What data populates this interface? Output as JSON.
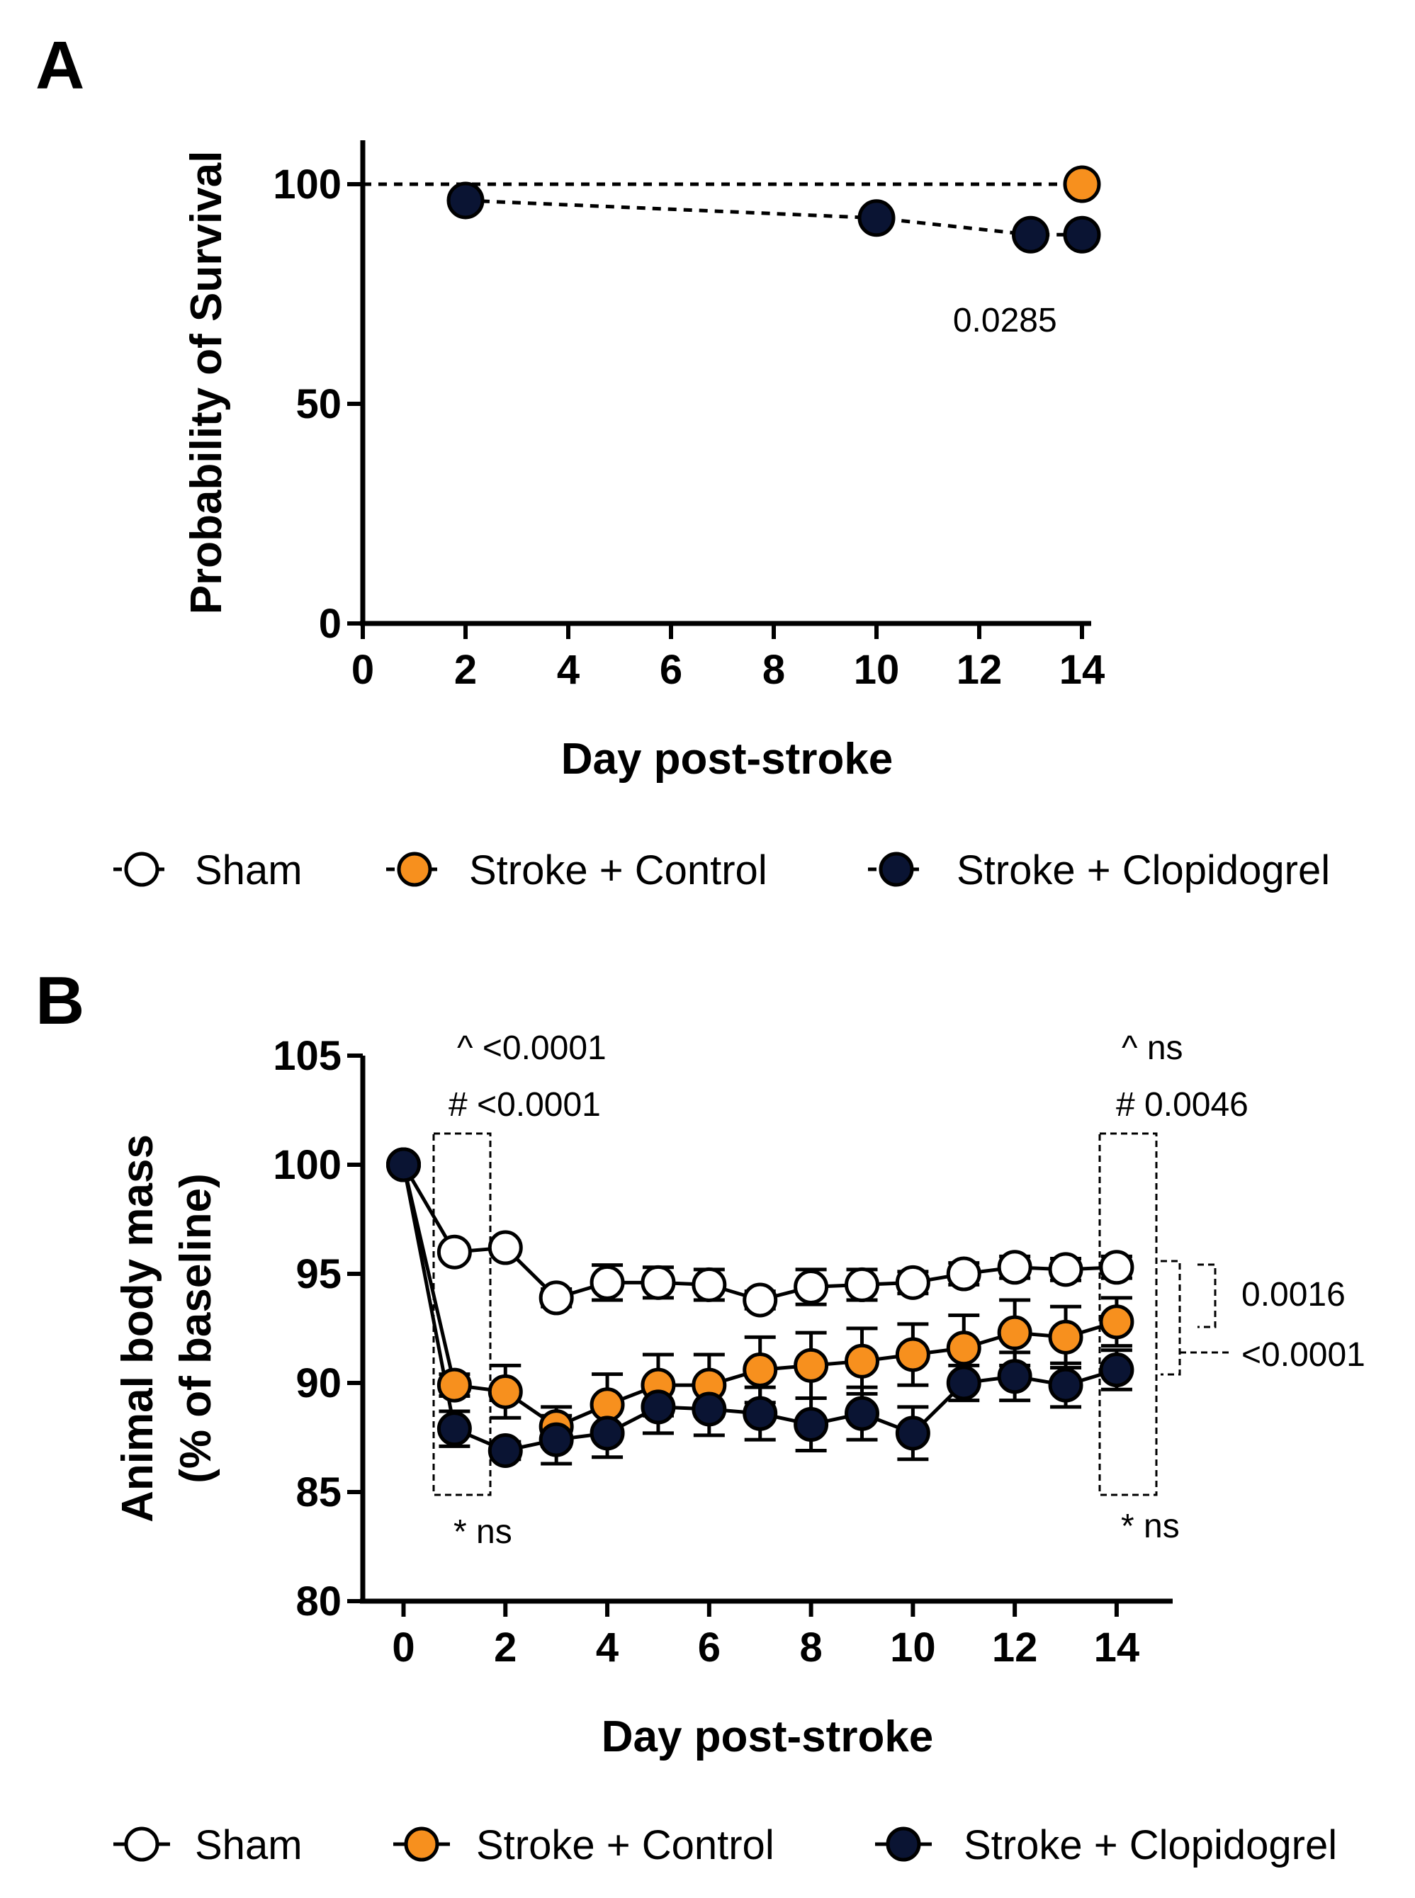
{
  "colors": {
    "sham": "#ffffff",
    "control": "#f7901e",
    "clopidogrel": "#0a1433",
    "outline": "#000000"
  },
  "legend": {
    "sham": "Sham",
    "control": "Stroke + Control",
    "clopidogrel": "Stroke + Clopidogrel"
  },
  "chart_data": [
    {
      "panel": "A",
      "type": "line",
      "title": "",
      "xlabel": "Day post-stroke",
      "ylabel": "Probability of Survival",
      "xlim": [
        0,
        14
      ],
      "ylim": [
        0,
        110
      ],
      "x_ticks": [
        "0",
        "2",
        "4",
        "6",
        "8",
        "10",
        "12",
        "14"
      ],
      "y_ticks": [
        "0",
        "50",
        "100"
      ],
      "grid": false,
      "series": [
        {
          "name": "Sham",
          "key": "sham",
          "line_x": [
            0,
            14
          ],
          "line_y": [
            100,
            100
          ],
          "points_x": [],
          "points_y": []
        },
        {
          "name": "Stroke + Control",
          "key": "control",
          "line_x": [
            0,
            14
          ],
          "line_y": [
            100,
            100
          ],
          "points_x": [
            14
          ],
          "points_y": [
            100
          ]
        },
        {
          "name": "Stroke + Clopidogrel",
          "key": "clopidogrel",
          "line_x": [
            2,
            2,
            10,
            10,
            13,
            13,
            14
          ],
          "line_y": [
            96.3,
            96.3,
            92.3,
            92.3,
            88.5,
            88.5,
            88.5
          ],
          "points_x": [
            2,
            10,
            13,
            14
          ],
          "points_y": [
            96.3,
            92.3,
            88.5,
            88.5
          ]
        }
      ],
      "annotations": [
        {
          "text": "0.0285",
          "x": 12.5,
          "y": 69
        }
      ],
      "legend_position": "bottom"
    },
    {
      "panel": "B",
      "type": "line",
      "title": "",
      "xlabel": "Day post-stroke",
      "ylabel_line1": "Animal body mass",
      "ylabel_line2": "(% of baseline)",
      "xlim": [
        -0.8,
        15.1
      ],
      "ylim": [
        80,
        105
      ],
      "x_ticks": [
        "0",
        "2",
        "4",
        "6",
        "8",
        "10",
        "12",
        "14"
      ],
      "y_ticks": [
        "80",
        "85",
        "90",
        "95",
        "100",
        "105"
      ],
      "grid": false,
      "x": [
        0,
        1,
        2,
        3,
        4,
        5,
        6,
        7,
        8,
        9,
        10,
        11,
        12,
        13,
        14
      ],
      "series": [
        {
          "name": "Sham",
          "key": "sham",
          "values": [
            100,
            96.0,
            96.2,
            93.9,
            94.6,
            94.6,
            94.5,
            93.8,
            94.4,
            94.5,
            94.6,
            95.0,
            95.3,
            95.2,
            95.3
          ],
          "errors": [
            0,
            0.3,
            0.3,
            0.4,
            0.8,
            0.7,
            0.7,
            0.4,
            0.8,
            0.7,
            0.5,
            0.5,
            0.5,
            0.5,
            0.5
          ]
        },
        {
          "name": "Stroke + Control",
          "key": "control",
          "values": [
            100,
            89.9,
            89.6,
            88.0,
            89.0,
            89.9,
            89.9,
            90.6,
            90.8,
            91.0,
            91.3,
            91.6,
            92.3,
            92.1,
            92.8
          ],
          "errors": [
            0,
            0.5,
            1.2,
            0.9,
            1.4,
            1.4,
            1.4,
            1.5,
            1.5,
            1.5,
            1.4,
            1.5,
            1.5,
            1.4,
            1.1
          ]
        },
        {
          "name": "Stroke + Clopidogrel",
          "key": "clopidogrel",
          "values": [
            100,
            87.9,
            86.9,
            87.4,
            87.7,
            88.9,
            88.8,
            88.6,
            88.1,
            88.6,
            87.7,
            90.0,
            90.3,
            89.9,
            90.6
          ],
          "errors": [
            0,
            0.8,
            0.4,
            1.1,
            1.1,
            1.2,
            1.2,
            1.2,
            1.2,
            1.2,
            1.2,
            0.8,
            1.1,
            1.0,
            0.9
          ]
        }
      ],
      "annotations": {
        "day1_top_1": "^ <0.0001",
        "day1_top_2": "# <0.0001",
        "day1_bottom": "*  ns",
        "day14_top_1": "^  ns",
        "day14_top_2": "#  0.0046",
        "day14_bottom": "*  ns",
        "bracket_sham_control": "0.0016",
        "bracket_sham_clopidogrel": "<0.0001"
      },
      "legend_position": "bottom"
    }
  ]
}
